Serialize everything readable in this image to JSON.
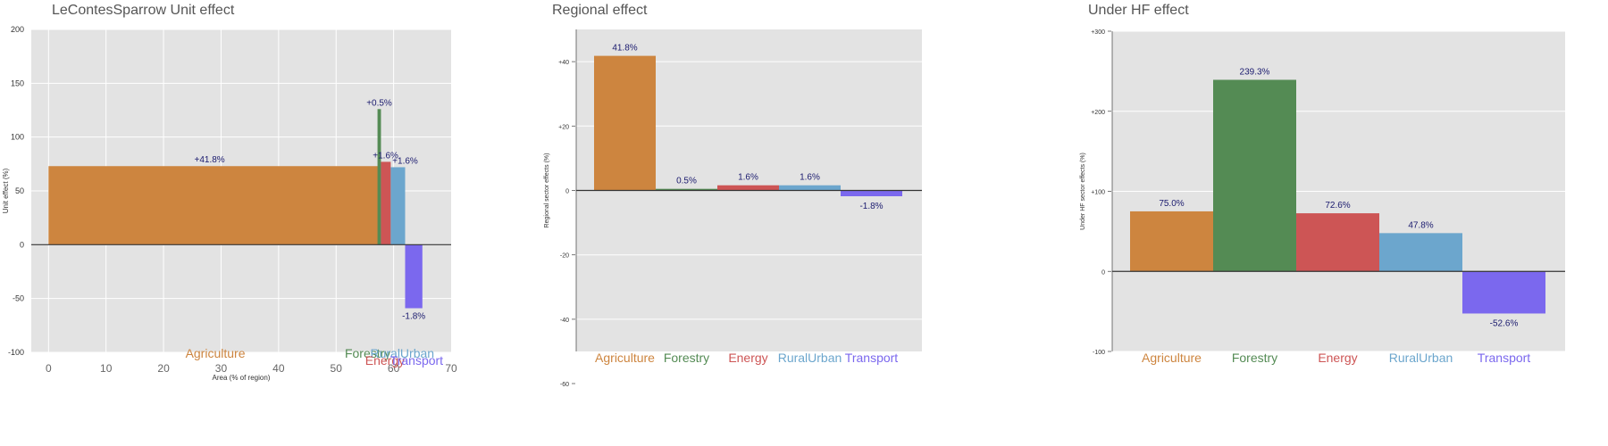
{
  "colors": {
    "Agriculture": "#CD853F",
    "Forestry": "#548B54",
    "Energy": "#CD5555",
    "RuralUrban": "#6CA6CD",
    "Transport": "#7B68EE",
    "plot_bg": "#E3E3E3",
    "label_text": "#1A1A6E"
  },
  "chart_data": [
    {
      "id": "unit",
      "type": "bar",
      "title": "LeContesSparrow Unit effect",
      "xlabel": "Area (% of region)",
      "ylabel": "Unit effect (%)",
      "xlim": [
        -3,
        70
      ],
      "ylim": [
        -100,
        200
      ],
      "xticks": [
        "0",
        "10",
        "20",
        "30",
        "40",
        "50",
        "60",
        "70"
      ],
      "xtick_values": [
        0,
        10,
        20,
        30,
        40,
        50,
        60,
        70
      ],
      "yticks": [
        "200",
        "150",
        "100",
        "50",
        "0",
        "-50",
        "-100"
      ],
      "ytick_values": [
        200,
        150,
        100,
        50,
        0,
        -50,
        -100
      ],
      "bars": [
        {
          "name": "Agriculture",
          "x_start": 0,
          "x_end": 57.5,
          "value": 73,
          "label": "+41.8%"
        },
        {
          "name": "Forestry",
          "x_start": 57.2,
          "x_end": 57.8,
          "value": 126,
          "label": "+0.5%"
        },
        {
          "name": "Energy",
          "x_start": 57.8,
          "x_end": 59.5,
          "value": 77,
          "label": "+1.6%"
        },
        {
          "name": "RuralUrban",
          "x_start": 59.5,
          "x_end": 62,
          "value": 72,
          "label": "+1.6%"
        },
        {
          "name": "Transport",
          "x_start": 62,
          "x_end": 65,
          "value": -59,
          "label": "-1.8%"
        }
      ],
      "sector_labels": [
        "Agriculture",
        "Forestry",
        "RuralUrban",
        "Energy",
        "Transport"
      ],
      "sector_label_x": [
        29,
        55.5,
        61.5,
        58.5,
        64
      ]
    },
    {
      "id": "regional",
      "type": "bar",
      "title": "Regional effect",
      "ylabel": "Regional sector effects (%)",
      "categories": [
        "Agriculture",
        "Forestry",
        "Energy",
        "RuralUrban",
        "Transport"
      ],
      "values": [
        41.8,
        0.5,
        1.6,
        1.6,
        -1.8
      ],
      "labels": [
        "41.8%",
        "0.5%",
        "1.6%",
        "1.6%",
        "-1.8%"
      ],
      "ylim": [
        -50,
        50
      ],
      "yticks": [
        "+40",
        "+20",
        "0",
        "-20",
        "-40",
        "-60"
      ],
      "ytick_values": [
        40,
        20,
        0,
        -20,
        -40,
        -60
      ]
    },
    {
      "id": "hf",
      "type": "bar",
      "title": "Under HF effect",
      "ylabel": "Under HF sector effects (%)",
      "categories": [
        "Agriculture",
        "Forestry",
        "Energy",
        "RuralUrban",
        "Transport"
      ],
      "values": [
        75.0,
        239.3,
        72.6,
        47.8,
        -52.6
      ],
      "labels": [
        "75.0%",
        "239.3%",
        "72.6%",
        "47.8%",
        "-52.6%"
      ],
      "ylim": [
        -100,
        300
      ],
      "yticks": [
        "+300",
        "+200",
        "+100",
        "0",
        "-100"
      ],
      "ytick_values": [
        300,
        200,
        100,
        0,
        -100
      ]
    }
  ]
}
